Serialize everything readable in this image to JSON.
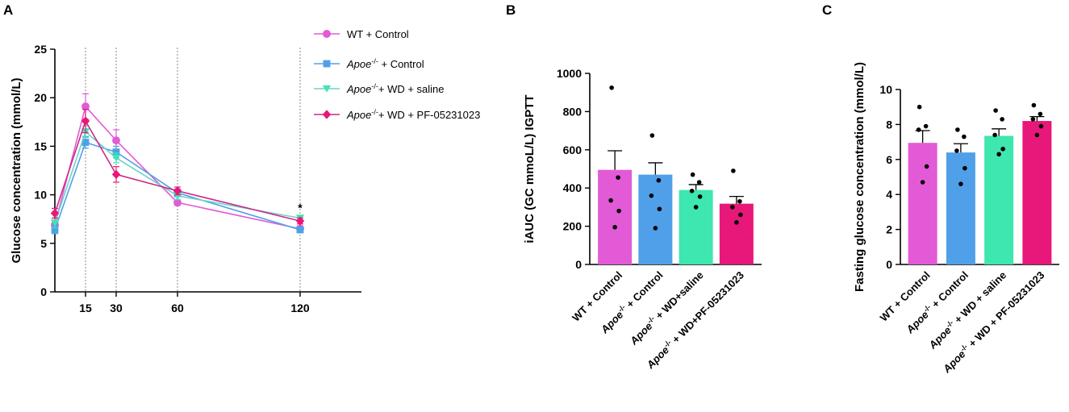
{
  "panels": {
    "a": "A",
    "b": "B",
    "c": "C"
  },
  "colors": {
    "wt_control": "#e35ad6",
    "apoe_control": "#4fa0e8",
    "apoe_wd_saline": "#3ee6b0",
    "apoe_wd_pf": "#e8177a",
    "line_saline": "#6ed3c7",
    "line_pf": "#cc2a86"
  },
  "chart_data": [
    {
      "type": "line",
      "ylabel": "Glucose concentration (mmol/L)",
      "xlabel": "",
      "xlim": [
        0,
        150
      ],
      "ylim": [
        0,
        25
      ],
      "yticks": [
        0,
        5,
        10,
        15,
        20,
        25
      ],
      "xticks": [
        15,
        30,
        60,
        120
      ],
      "vlines": [
        15,
        30,
        60,
        120
      ],
      "annotation": {
        "text": "*",
        "x": 120,
        "y": 8.6
      },
      "x": [
        0,
        15,
        30,
        60,
        120
      ],
      "series": [
        {
          "name": "WT + Control",
          "italic": "",
          "rest": "WT + Control",
          "marker": "circle",
          "color_key": "wt_control",
          "values": [
            6.9,
            19.1,
            15.6,
            9.2,
            6.5
          ],
          "errors": [
            0.7,
            1.3,
            1.1,
            0.3,
            0.3
          ]
        },
        {
          "name": "Apoe-/- + Control",
          "italic": "Apoe",
          "sup": "-/-",
          "rest": " + Control",
          "marker": "square",
          "color_key": "apoe_control",
          "values": [
            6.4,
            15.4,
            14.4,
            10.2,
            6.4
          ],
          "errors": [
            0.4,
            0.6,
            0.6,
            0.4,
            0.3
          ]
        },
        {
          "name": "Apoe-/- + WD + saline",
          "italic": "Apoe",
          "sup": "-/-",
          "rest": "+ WD + saline",
          "marker": "triangle",
          "color_key": "apoe_wd_saline",
          "values": [
            7.1,
            16.5,
            13.8,
            9.9,
            7.6
          ],
          "errors": [
            0.5,
            0.6,
            0.5,
            0.4,
            0.3
          ]
        },
        {
          "name": "Apoe-/- + WD + PF-05231023",
          "italic": "Apoe",
          "sup": "-/-",
          "rest": "+ WD + PF-05231023",
          "marker": "diamond",
          "color_key": "apoe_wd_pf",
          "values": [
            8.1,
            17.6,
            12.1,
            10.4,
            7.3
          ],
          "errors": [
            0.5,
            1.2,
            0.8,
            0.4,
            0.3
          ]
        }
      ]
    },
    {
      "type": "bar",
      "ylabel": "iAUC (GC mmoL/L) IGPTT",
      "ylim": [
        0,
        1000
      ],
      "yticks": [
        0,
        200,
        400,
        600,
        800,
        1000
      ],
      "categories": [
        {
          "italic": "",
          "rest": "WT + Control"
        },
        {
          "italic": "Apoe",
          "sup": "-/-",
          "rest": " + Control"
        },
        {
          "italic": "Apoe",
          "sup": "-/-",
          "rest": " + WD+saline"
        },
        {
          "italic": "Apoe",
          "sup": "-/-",
          "rest": " + WD+PF-05231023"
        }
      ],
      "values": [
        495,
        470,
        390,
        318
      ],
      "errors": [
        100,
        62,
        28,
        38
      ],
      "color_keys": [
        "wt_control",
        "apoe_control",
        "apoe_wd_saline",
        "apoe_wd_pf"
      ],
      "points": [
        [
          925,
          455,
          335,
          280,
          195
        ],
        [
          675,
          440,
          360,
          290,
          190
        ],
        [
          470,
          430,
          385,
          355,
          300
        ],
        [
          490,
          330,
          300,
          260,
          220
        ]
      ]
    },
    {
      "type": "bar",
      "ylabel": "Fasting glucose concentration (mmol/L)",
      "ylim": [
        0,
        10
      ],
      "yticks": [
        0,
        2,
        4,
        6,
        8,
        10
      ],
      "categories": [
        {
          "italic": "",
          "rest": "WT + Control"
        },
        {
          "italic": "Apoe",
          "sup": "-/-",
          "rest": " + Control"
        },
        {
          "italic": "Apoe",
          "sup": "-/-",
          "rest": " + WD + saline"
        },
        {
          "italic": "Apoe",
          "sup": "-/-",
          "rest": " + WD + PF-05231023"
        }
      ],
      "values": [
        6.95,
        6.4,
        7.35,
        8.2
      ],
      "errors": [
        0.7,
        0.5,
        0.4,
        0.25
      ],
      "color_keys": [
        "wt_control",
        "apoe_control",
        "apoe_wd_saline",
        "apoe_wd_pf"
      ],
      "points": [
        [
          9.0,
          7.9,
          7.7,
          5.6,
          4.7
        ],
        [
          7.7,
          7.3,
          6.5,
          5.5,
          4.6
        ],
        [
          8.8,
          8.3,
          7.4,
          6.6,
          6.3
        ],
        [
          9.1,
          8.6,
          8.3,
          7.9,
          7.4
        ]
      ]
    }
  ]
}
